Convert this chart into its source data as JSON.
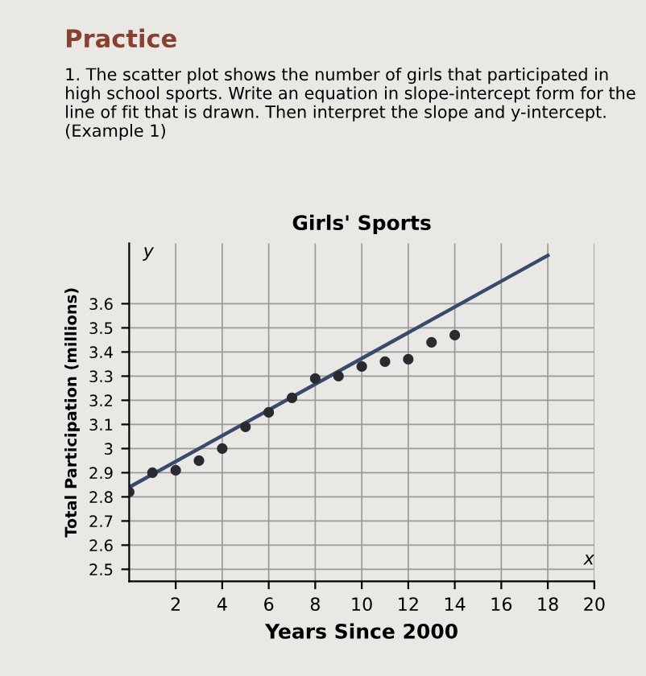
{
  "chart_data": {
    "type": "scatter",
    "title": "Girls' Sports",
    "xlabel": "Years Since 2000",
    "ylabel": "Total Participation (millions)",
    "annotations": [
      "Practice",
      "1. The scatter plot shows the number of girls that participated in high school sports. Write an equation in slope-intercept form for the line of fit that is drawn. Then interpret the slope and y-intercept. (Example 1)",
      "y",
      "x"
    ],
    "series": [
      {
        "color": "#2a2a30",
        "x": [
          0,
          1,
          2,
          3,
          4,
          5,
          6,
          7,
          8,
          9,
          10,
          11,
          12,
          13,
          14
        ],
        "values": [
          2.82,
          2.9,
          2.91,
          2.95,
          3.0,
          3.09,
          3.15,
          3.21,
          3.29,
          3.3,
          3.34,
          3.36,
          3.37,
          3.44,
          3.47
        ]
      },
      {
        "type": "line",
        "marker": "none",
        "color": "#3a4a6a",
        "x": [
          0,
          18
        ],
        "values": [
          2.84,
          3.8
        ]
      }
    ],
    "xlim": [
      0,
      20
    ],
    "xticks": [
      2,
      4,
      6,
      8,
      10,
      12,
      14,
      16,
      18,
      20
    ],
    "ylim": [
      2.45,
      3.85
    ],
    "yticks": [
      2.5,
      2.6,
      2.7,
      2.8,
      2.9,
      3,
      3.1,
      3.2,
      3.3,
      3.4,
      3.5,
      3.6
    ],
    "grid": true,
    "marker": "circle",
    "legend": false
  }
}
